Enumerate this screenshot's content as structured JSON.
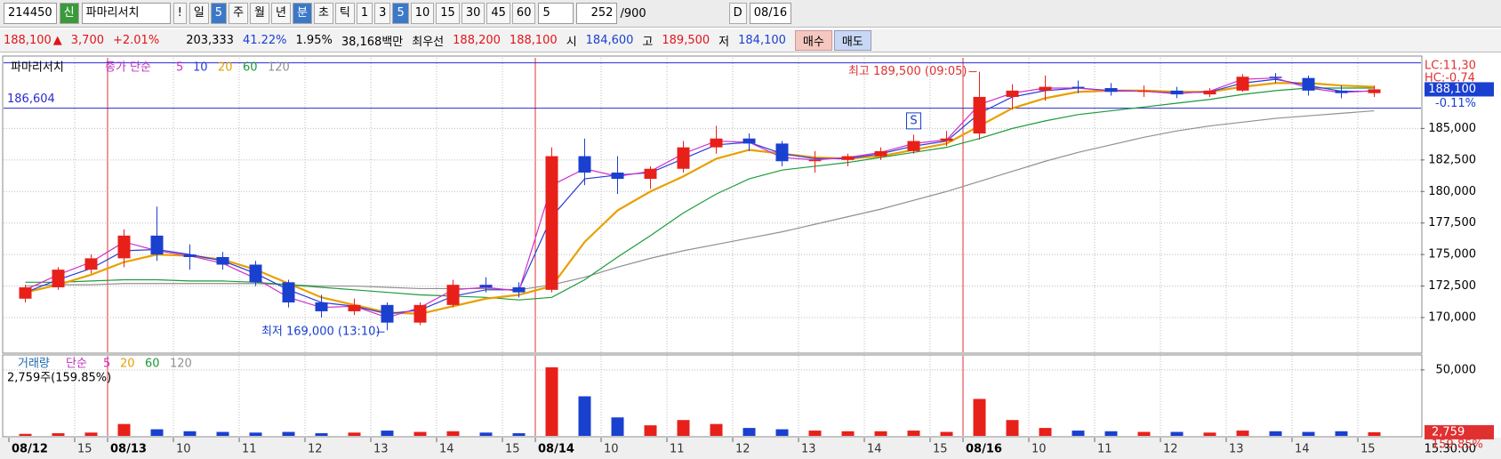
{
  "toolbar": {
    "code": "214450",
    "tag": "신",
    "name": "파마리서치",
    "alert": "!",
    "periods": [
      "일",
      "5",
      "주",
      "월",
      "년",
      "분",
      "초",
      "틱",
      "1",
      "3",
      "5",
      "10",
      "15",
      "30",
      "45",
      "60"
    ],
    "active_periods": [
      1,
      5,
      10
    ],
    "interval": "5",
    "count": "252",
    "max": "/900",
    "d_label": "D",
    "date": "08/16"
  },
  "quote": {
    "price": "188,100",
    "arrow": "▲",
    "change": "3,700",
    "rate": "+2.01%",
    "volume": "203,333",
    "ratio": "41.22%",
    "turnover": "1.95%",
    "amount": "38,168백만",
    "best_label": "최우선",
    "ask": "188,200",
    "bid": "188,100",
    "open_label": "시",
    "open": "184,600",
    "high_label": "고",
    "high": "189,500",
    "low_label": "저",
    "low": "184,100",
    "buy": "매수",
    "sell": "매도"
  },
  "chart_data": [
    {
      "type": "candlestick",
      "title": "파마리서치",
      "legend_label": "종가 단순",
      "categories": [
        "08/12",
        null,
        "15",
        "08/13",
        null,
        "10",
        null,
        "11",
        null,
        "12",
        null,
        "13",
        null,
        "14",
        null,
        "15",
        "08/14",
        null,
        "10",
        null,
        "11",
        null,
        "12",
        null,
        "13",
        null,
        "14",
        null,
        "15",
        "08/16",
        null,
        "10",
        null,
        "11",
        null,
        "12",
        null,
        "13",
        null,
        "14",
        null,
        "15"
      ],
      "open": [
        171500,
        172400,
        173800,
        174700,
        176500,
        175000,
        174800,
        174200,
        172800,
        171200,
        170500,
        171000,
        169600,
        171000,
        172600,
        172400,
        172200,
        182800,
        181500,
        181000,
        181800,
        183500,
        184200,
        183800,
        182400,
        182500,
        182800,
        183200,
        184000,
        184600,
        187500,
        188000,
        188300,
        188200,
        187900,
        188000,
        187700,
        188000,
        189100,
        189000,
        188000,
        187800
      ],
      "high": [
        172600,
        174000,
        175000,
        177000,
        178800,
        175800,
        175200,
        174500,
        173000,
        171800,
        171500,
        171200,
        171200,
        173000,
        173200,
        172800,
        183500,
        184200,
        182800,
        182000,
        184000,
        185200,
        184600,
        184000,
        183200,
        183000,
        183500,
        184500,
        184800,
        189500,
        188500,
        189200,
        188800,
        188600,
        188400,
        188300,
        188200,
        189300,
        189400,
        189200,
        188400,
        188400
      ],
      "low": [
        171200,
        172200,
        173500,
        174000,
        174500,
        173800,
        173800,
        172500,
        170800,
        170000,
        170200,
        169000,
        169400,
        170800,
        172000,
        171600,
        172000,
        180500,
        179800,
        180200,
        181500,
        183000,
        183200,
        182000,
        181500,
        182000,
        182500,
        183000,
        183600,
        184100,
        186500,
        187200,
        187800,
        187600,
        187500,
        187400,
        187500,
        187900,
        188600,
        187600,
        187400,
        187500
      ],
      "close": [
        172400,
        173800,
        174700,
        176500,
        175000,
        174800,
        174200,
        172800,
        171200,
        170500,
        171000,
        169600,
        171000,
        172600,
        172400,
        172000,
        182800,
        181500,
        181000,
        181800,
        183500,
        184200,
        183800,
        182400,
        182500,
        182800,
        183200,
        184000,
        184200,
        187500,
        188000,
        188300,
        188200,
        187900,
        188000,
        187700,
        188000,
        189100,
        189000,
        188000,
        187800,
        188100
      ],
      "up_color": "#e8201a",
      "down_color": "#1a40d0",
      "series": [
        {
          "name": "5",
          "color": "#d030c8",
          "values": [
            172200,
            173400,
            174400,
            176000,
            175300,
            174900,
            174300,
            173100,
            171600,
            170800,
            170900,
            170000,
            170800,
            172200,
            172400,
            172100,
            180500,
            181800,
            181200,
            181600,
            183000,
            184000,
            183900,
            182700,
            182500,
            182700,
            183100,
            183800,
            184100,
            186900,
            187800,
            188200,
            188200,
            187950,
            187950,
            187750,
            187950,
            188900,
            189000,
            188200,
            187850,
            188000
          ]
        },
        {
          "name": "10",
          "color": "#2a3cd8",
          "values": [
            172000,
            173000,
            173900,
            175300,
            175400,
            175000,
            174500,
            173500,
            172200,
            171200,
            170900,
            170300,
            170600,
            171700,
            172200,
            172200,
            178000,
            181000,
            181300,
            181500,
            182600,
            183700,
            183900,
            183000,
            182600,
            182600,
            183000,
            183600,
            184000,
            186200,
            187500,
            188000,
            188200,
            188000,
            187950,
            187800,
            187900,
            188600,
            188900,
            188400,
            187950,
            187950
          ]
        },
        {
          "name": "20",
          "color": "#e8a000",
          "values": [
            172000,
            172600,
            173400,
            174400,
            175000,
            174900,
            174600,
            173800,
            172700,
            171600,
            171000,
            170400,
            170300,
            170900,
            171500,
            171800,
            172500,
            176000,
            178500,
            180000,
            181200,
            182600,
            183300,
            183000,
            182700,
            182600,
            182800,
            183300,
            183800,
            185200,
            186600,
            187400,
            187900,
            188000,
            188000,
            187900,
            187900,
            188300,
            188600,
            188600,
            188400,
            188300
          ]
        },
        {
          "name": "60",
          "color": "#1e9a3a",
          "values": [
            172800,
            172800,
            172900,
            173000,
            173000,
            172900,
            172900,
            172800,
            172600,
            172400,
            172200,
            172000,
            171800,
            171700,
            171600,
            171400,
            171600,
            173000,
            174800,
            176500,
            178300,
            179800,
            181000,
            181700,
            182000,
            182300,
            182700,
            183100,
            183500,
            184200,
            185000,
            185600,
            186100,
            186400,
            186700,
            187000,
            187300,
            187700,
            188000,
            188200,
            188200,
            188200
          ]
        },
        {
          "name": "120",
          "color": "#909090",
          "values": [
            172500,
            172600,
            172600,
            172700,
            172700,
            172700,
            172700,
            172700,
            172600,
            172500,
            172500,
            172400,
            172300,
            172300,
            172300,
            172200,
            172600,
            173200,
            174000,
            174700,
            175300,
            175800,
            176300,
            176800,
            177400,
            178000,
            178600,
            179300,
            180000,
            180800,
            181600,
            182400,
            183100,
            183700,
            184300,
            184800,
            185200,
            185500,
            185800,
            186000,
            186200,
            186400
          ]
        }
      ],
      "ylim": [
        167250,
        190600
      ],
      "yticks": [
        {
          "value": 170000,
          "label": "170,000"
        },
        {
          "value": 172500,
          "label": "172,500"
        },
        {
          "value": 175000,
          "label": "175,000"
        },
        {
          "value": 177500,
          "label": "177,500"
        },
        {
          "value": 180000,
          "label": "180,000"
        },
        {
          "value": 182500,
          "label": "182,500"
        },
        {
          "value": 185000,
          "label": "185,000"
        }
      ],
      "grid": true,
      "current": {
        "value": 188100,
        "label": "188,100"
      },
      "current_rate": "-0.11%",
      "hline": {
        "value": 186604,
        "label": "186,604"
      },
      "upper_line": 190200,
      "corner_labels": [
        "LC:11,30",
        "HC:-0.74"
      ],
      "annotations": [
        {
          "text": "최고 189,500 (09:05)",
          "index": 29,
          "value": 189500
        },
        {
          "text": "최저 169,000 (13:10)",
          "index": 11,
          "value": 169000
        }
      ],
      "signal": {
        "text": "S",
        "index": 27,
        "value": 185600
      },
      "time_label": "15:30:00"
    },
    {
      "type": "bar",
      "title": "거래량",
      "legend_label": "단순",
      "legend": [
        {
          "name": "5",
          "color": "#d030c8"
        },
        {
          "name": "20",
          "color": "#e8a000"
        },
        {
          "name": "60",
          "color": "#1e9a3a"
        },
        {
          "name": "120",
          "color": "#909090"
        }
      ],
      "status": "2,759주(159.85%)",
      "values": [
        1500,
        2000,
        2500,
        9000,
        5000,
        3500,
        3000,
        2500,
        3000,
        2000,
        2500,
        4000,
        3000,
        3500,
        2500,
        2000,
        52000,
        30000,
        14000,
        8000,
        12000,
        9000,
        6000,
        5000,
        4000,
        3500,
        3500,
        4000,
        3000,
        28000,
        12000,
        6000,
        4000,
        3500,
        3000,
        3000,
        2500,
        4000,
        3500,
        3000,
        3500,
        2759
      ],
      "value_labels": [
        null,
        null,
        null,
        null,
        null,
        null,
        null,
        null,
        null,
        null,
        null,
        null,
        null,
        null,
        null,
        null,
        null,
        null,
        null,
        null,
        null,
        null,
        null,
        null,
        null,
        null,
        null,
        null,
        null,
        null,
        null,
        null,
        null,
        null,
        null,
        null,
        null,
        null,
        null,
        null,
        null,
        "2,759"
      ],
      "current_rate": "159.85%",
      "ylim": [
        0,
        60700
      ],
      "yticks": [
        {
          "value": 50000,
          "label": "50,000"
        }
      ],
      "grid": true
    }
  ]
}
